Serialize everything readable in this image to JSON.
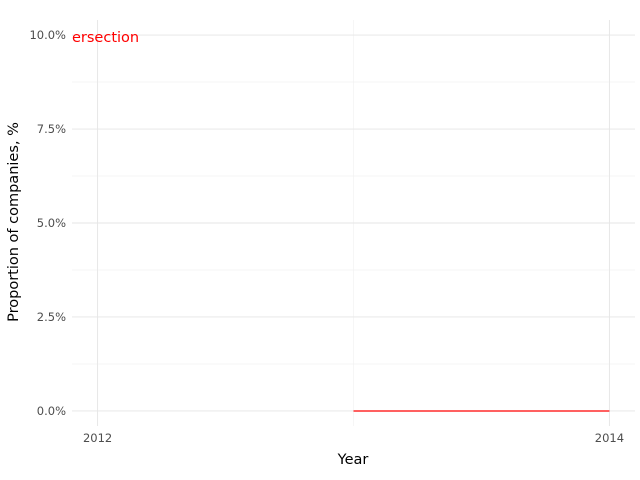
{
  "chart_data": {
    "type": "line",
    "title": "",
    "xlabel": "Year",
    "ylabel": "Proportion of companies, %",
    "xlim": [
      2011.9,
      2014.1
    ],
    "ylim": [
      -0.4,
      10.4
    ],
    "x_ticks": [
      {
        "value": 2012,
        "label": "2012"
      },
      {
        "value": 2014,
        "label": "2014"
      }
    ],
    "y_ticks": [
      {
        "value": 0,
        "label": "0.0%"
      },
      {
        "value": 2.5,
        "label": "2.5%"
      },
      {
        "value": 5,
        "label": "5.0%"
      },
      {
        "value": 7.5,
        "label": "7.5%"
      },
      {
        "value": 10,
        "label": "10.0%"
      }
    ],
    "x_minor": [
      2013
    ],
    "y_minor": [
      1.25,
      3.75,
      6.25,
      8.75
    ],
    "grid": true,
    "legend": "none",
    "series": [
      {
        "color": "#ff0000",
        "points": [
          {
            "x": 2013,
            "y": 0
          },
          {
            "x": 2014,
            "y": 0
          }
        ]
      }
    ],
    "annotations": [
      {
        "text": "ersection",
        "color": "#ff0000"
      }
    ]
  }
}
